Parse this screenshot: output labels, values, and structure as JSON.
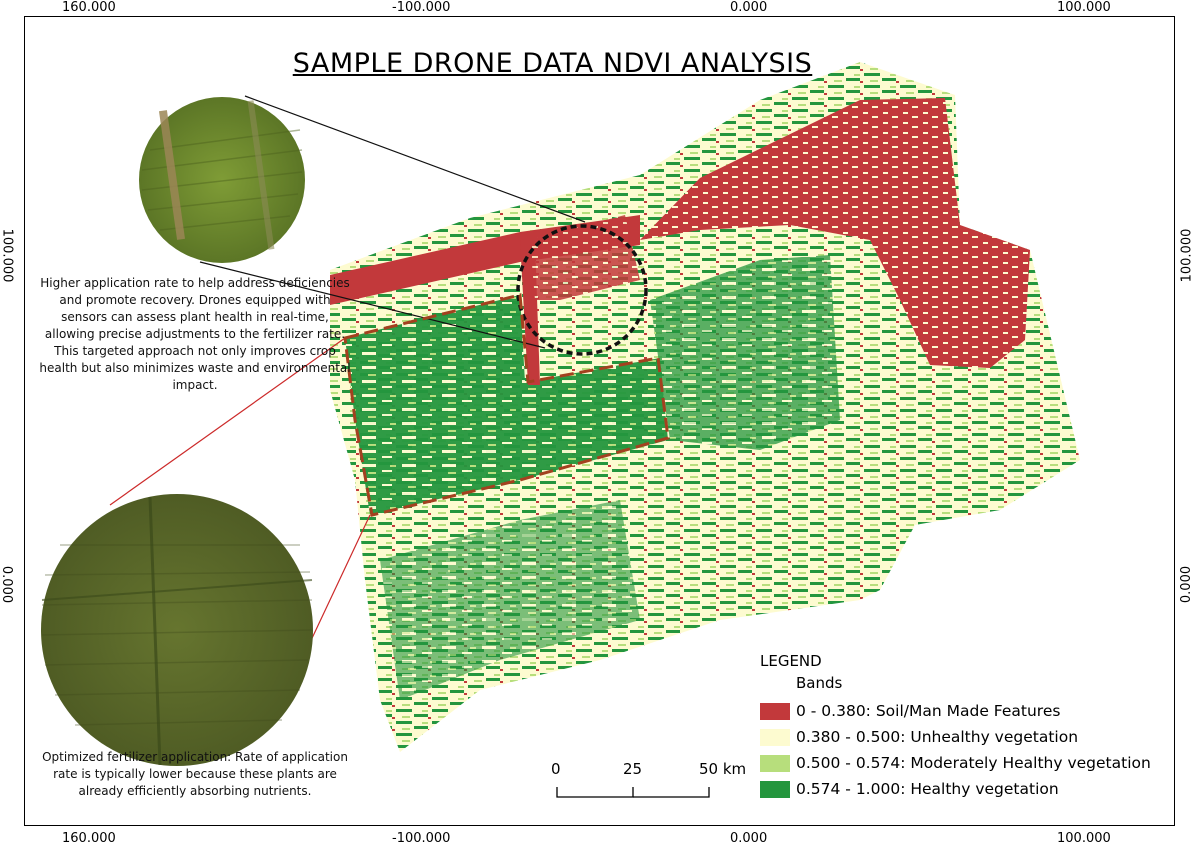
{
  "map": {
    "title": "SAMPLE DRONE DATA NDVI ANALYSIS",
    "coords": {
      "top": [
        "160.000",
        "-100.000",
        "0.000",
        "100.000"
      ],
      "bottom": [
        "160.000",
        "-100.000",
        "0.000",
        "100.000"
      ],
      "left": [
        "100.000",
        "0.000"
      ],
      "right": [
        "100.000",
        "0.000"
      ]
    },
    "caption_top": "Higher application rate to help address deficiencies and promote recovery. Drones equipped with sensors can assess plant health in real-time, allowing precise adjustments to the fertilizer rate. This targeted approach not only improves crop health but also minimizes waste and environmental impact.",
    "caption_bottom": "Optimized fertilizer application: Rate of application rate is typically lower because these plants are already efficiently absorbing nutrients."
  },
  "legend": {
    "title": "LEGEND",
    "subtitle": "Bands",
    "items": [
      {
        "label": "0 - 0.380: Soil/Man Made Features",
        "color": "#c2393b"
      },
      {
        "label": "0.380 - 0.500: Unhealthy vegetation",
        "color": "#fdfbd0"
      },
      {
        "label": "0.500 - 0.574: Moderately Healthy vegetation",
        "color": "#b7de7c"
      },
      {
        "label": "0.574 - 1.000: Healthy vegetation",
        "color": "#24963e"
      }
    ]
  },
  "scale_bar": {
    "labels": [
      "0",
      "25",
      "50 km"
    ]
  },
  "colors": {
    "soil": "#c2393b",
    "unhealthy": "#fdfbd0",
    "moderate": "#b7de7c",
    "healthy": "#24963e",
    "photo_top": "#6e8a2c",
    "photo_bottom": "#5a6a2a"
  }
}
